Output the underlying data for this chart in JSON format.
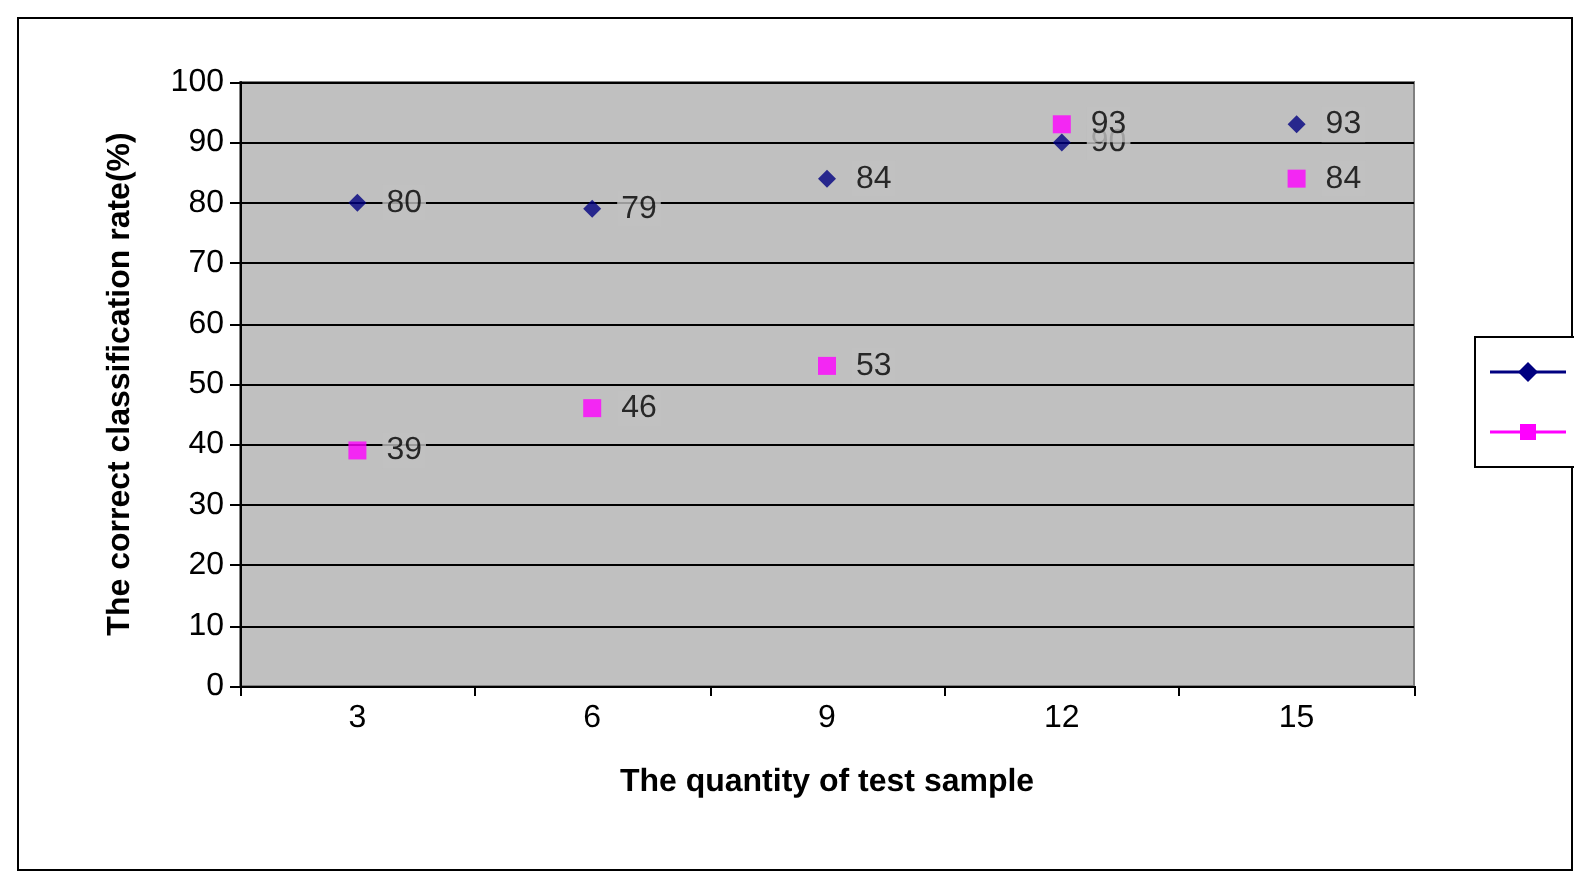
{
  "chart_data": {
    "type": "scatter",
    "xlabel": "The quantity of test sample",
    "ylabel": "The correct classification rate(%)",
    "categories": [
      "3",
      "6",
      "9",
      "12",
      "15"
    ],
    "series": [
      {
        "color": "#000080",
        "marker": "diamond",
        "values": [
          80,
          79,
          84,
          90,
          93
        ]
      },
      {
        "color": "#ff00ff",
        "marker": "square",
        "values": [
          39,
          46,
          53,
          93,
          84
        ]
      }
    ],
    "ylim": [
      0,
      100
    ],
    "yticks": [
      0,
      10,
      20,
      30,
      40,
      50,
      60,
      70,
      80,
      90,
      100
    ],
    "grid": "y",
    "data_labels": true
  }
}
